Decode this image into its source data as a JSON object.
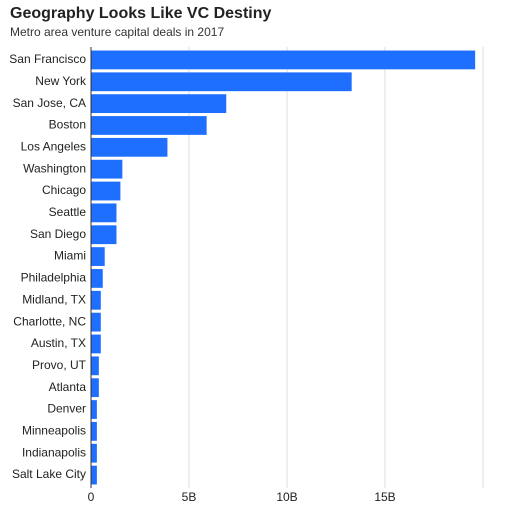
{
  "chart_data": {
    "type": "barh",
    "title": "Geography Looks Like VC Destiny",
    "subtitle": "Metro area venture capital deals in 2017",
    "categories": [
      "San Francisco",
      "New York",
      "San Jose, CA",
      "Boston",
      "Los Angeles",
      "Washington",
      "Chicago",
      "Seattle",
      "San Diego",
      "Miami",
      "Philadelphia",
      "Midland, TX",
      "Charlotte, NC",
      "Austin, TX",
      "Provo, UT",
      "Atlanta",
      "Denver",
      "Minneapolis",
      "Indianapolis",
      "Salt Lake City"
    ],
    "values": [
      19.6,
      13.3,
      6.9,
      5.9,
      3.9,
      1.6,
      1.5,
      1.3,
      1.3,
      0.7,
      0.6,
      0.5,
      0.5,
      0.5,
      0.4,
      0.4,
      0.3,
      0.3,
      0.3,
      0.3
    ],
    "color": "#1f6fff",
    "xlim": [
      0,
      20
    ],
    "xticks": [
      0,
      {
        "value": 5,
        "label": "5B"
      },
      {
        "value": 10,
        "label": "10B"
      },
      {
        "value": 15,
        "label": "15B"
      }
    ],
    "grid": true
  }
}
